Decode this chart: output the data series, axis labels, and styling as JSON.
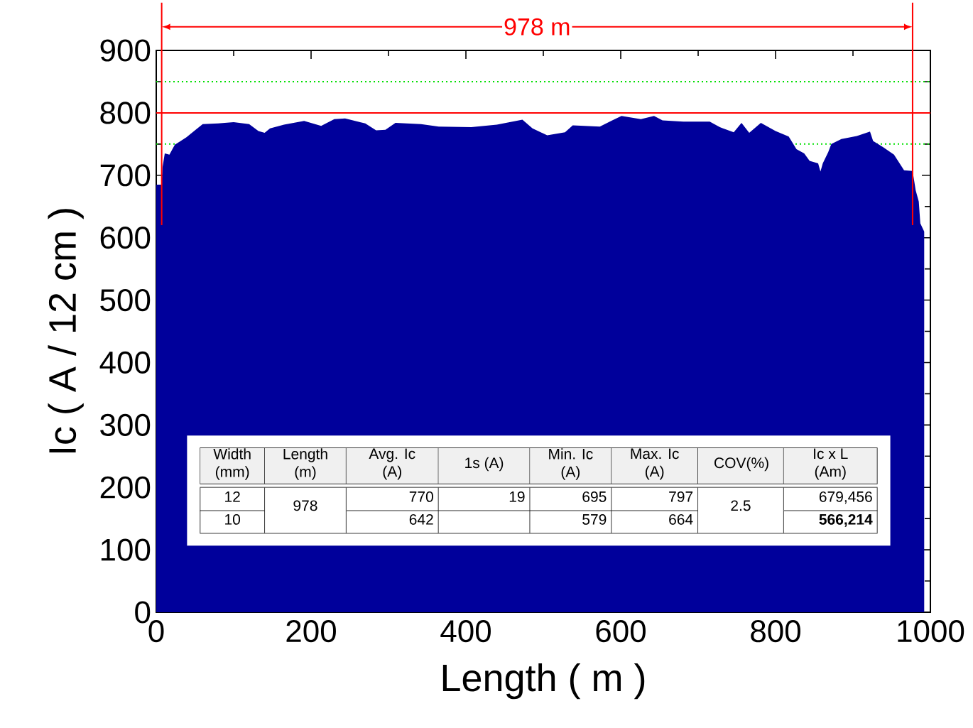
{
  "chart_data": {
    "type": "area",
    "xlabel": "Length ( m )",
    "ylabel": "Ic ( A / 12 cm )",
    "color": "#00009b",
    "x": [
      0,
      7,
      8,
      11,
      17,
      24,
      39,
      50,
      60,
      80,
      100,
      120,
      132,
      140,
      147,
      165,
      191,
      213,
      230,
      244,
      270,
      284,
      296,
      309,
      342,
      365,
      407,
      440,
      473,
      486,
      505,
      528,
      538,
      573,
      589,
      601,
      626,
      643,
      654,
      681,
      715,
      728,
      746,
      756,
      766,
      781,
      800,
      817,
      827,
      837,
      844,
      855,
      858,
      861,
      868,
      872,
      885,
      905,
      922,
      926,
      939,
      953,
      966,
      977,
      981,
      985,
      987,
      992
    ],
    "values": [
      685,
      685,
      712,
      735,
      733,
      749,
      761,
      772,
      782,
      783,
      785,
      782,
      771,
      768,
      775,
      781,
      787,
      779,
      790,
      791,
      783,
      772,
      773,
      784,
      782,
      778,
      777,
      781,
      789,
      775,
      764,
      769,
      780,
      778,
      788,
      795,
      790,
      795,
      788,
      786,
      786,
      777,
      769,
      784,
      768,
      784,
      771,
      762,
      742,
      735,
      723,
      719,
      706,
      719,
      737,
      750,
      758,
      763,
      770,
      755,
      745,
      733,
      708,
      707,
      676,
      658,
      623,
      610
    ],
    "xlim": [
      0,
      1000
    ],
    "ylim": [
      0,
      900
    ],
    "xticks": [
      0,
      200,
      400,
      600,
      800,
      1000
    ],
    "yticks": [
      0,
      100,
      200,
      300,
      400,
      500,
      600,
      700,
      800,
      900
    ],
    "ref_lines": [
      {
        "axis": "y",
        "value": 800,
        "color": "#ff0000",
        "line_style": "solid"
      },
      {
        "axis": "y",
        "value": 850,
        "color": "#00e000",
        "line_style": "dotted"
      },
      {
        "axis": "y",
        "value": 750,
        "color": "#00e000",
        "line_style": "dotted"
      },
      {
        "axis": "x",
        "value": 7,
        "color": "#ff0000",
        "line_style": "solid"
      },
      {
        "axis": "x",
        "value": 977,
        "color": "#ff0000",
        "line_style": "solid"
      }
    ],
    "annotations": [
      "978 m",
      "Width (mm)",
      "Length (m)",
      "Avg. Ic (A)",
      "1s (A)",
      "Min. Ic (A)",
      "Max. Ic (A)",
      "COV(%)",
      "Ic x L (Am)",
      "12",
      "978",
      "770",
      "19",
      "695",
      "797",
      "2.5",
      "679,456",
      "10",
      "642",
      "579",
      "664",
      "**566,214**"
    ]
  }
}
